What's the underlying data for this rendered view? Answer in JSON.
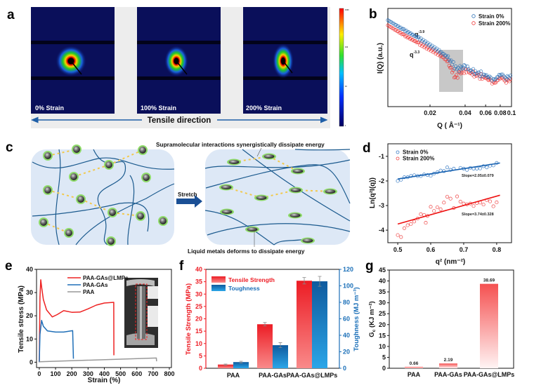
{
  "panels": {
    "a": {
      "label": "a",
      "images": [
        "0% Strain",
        "100% Strain",
        "200% Strain"
      ],
      "direction": "Tensile direction",
      "colorbar_ticks": [
        "1000",
        "100",
        "10",
        "1"
      ]
    },
    "b": {
      "label": "b",
      "annot1_base": "q",
      "annot1_exp": "-3.9",
      "annot2_base": "q",
      "annot2_exp": "-3.3"
    },
    "c": {
      "label": "c",
      "stretch": "Stretch",
      "top_note": "Supramolecular interactions synergistically dissipate energy",
      "bottom_note": "Liquid metals deforms to dissipate energy"
    },
    "d": {
      "label": "d",
      "slope_blue": "Slope=2.05±0.079",
      "slope_red": "Slope=3.74±0.328"
    },
    "e": {
      "label": "e"
    },
    "f": {
      "label": "f"
    },
    "g": {
      "label": "g"
    }
  },
  "colors": {
    "blue": "#1f5fa8",
    "red": "#ee2222",
    "gray": "#9a9a9a",
    "navy": "#0a0f5a"
  },
  "chart_data": [
    {
      "id": "b",
      "type": "scatter",
      "xlabel": "Q ( Å⁻¹)",
      "ylabel": "I(Q) (a.u.)",
      "xscale": "log",
      "xlim": [
        0.0087,
        0.1
      ],
      "ylim": [
        0,
        11
      ],
      "xticks": [
        0.02,
        0.04,
        0.06,
        0.08,
        0.1
      ],
      "xtick_labels": [
        "0.02",
        "0.04",
        "0.06",
        "0.08",
        "0.1"
      ],
      "legend_position": "top-right",
      "highlight_range": [
        0.026,
        0.04
      ],
      "series": [
        {
          "name": "Strain 0%",
          "color": "#2a6fb5",
          "points": [
            [
              0.0087,
              9.6
            ],
            [
              0.012,
              8.5
            ],
            [
              0.016,
              7.6
            ],
            [
              0.02,
              6.8
            ],
            [
              0.025,
              6.0
            ],
            [
              0.028,
              5.5
            ],
            [
              0.031,
              4.8
            ],
            [
              0.034,
              4.1
            ],
            [
              0.037,
              4.2
            ],
            [
              0.04,
              4.4
            ],
            [
              0.045,
              4.0
            ],
            [
              0.05,
              3.7
            ],
            [
              0.06,
              3.4
            ],
            [
              0.065,
              3.2
            ],
            [
              0.07,
              2.9
            ],
            [
              0.075,
              3.2
            ],
            [
              0.08,
              3.6
            ],
            [
              0.09,
              3.2
            ],
            [
              0.1,
              3.3
            ]
          ]
        },
        {
          "name": "Strain 200%",
          "color": "#ee3333",
          "points": [
            [
              0.0087,
              9.1
            ],
            [
              0.012,
              8.0
            ],
            [
              0.016,
              7.1
            ],
            [
              0.02,
              6.4
            ],
            [
              0.025,
              5.7
            ],
            [
              0.028,
              5.1
            ],
            [
              0.031,
              4.0
            ],
            [
              0.033,
              3.3
            ],
            [
              0.036,
              3.7
            ],
            [
              0.04,
              4.1
            ],
            [
              0.045,
              3.8
            ],
            [
              0.05,
              3.5
            ],
            [
              0.06,
              3.2
            ],
            [
              0.065,
              3.0
            ],
            [
              0.07,
              2.6
            ],
            [
              0.075,
              2.9
            ],
            [
              0.08,
              3.3
            ],
            [
              0.09,
              2.9
            ],
            [
              0.1,
              3.0
            ]
          ]
        }
      ]
    },
    {
      "id": "d",
      "type": "scatter",
      "xlabel": "q² (nm⁻²)",
      "ylabel": "Ln(q²I(q))",
      "xlim": [
        0.47,
        0.845
      ],
      "ylim": [
        -4.51,
        -0.49
      ],
      "xticks": [
        0.5,
        0.6,
        0.7,
        0.8
      ],
      "xtick_labels": [
        "0.5",
        "0.6",
        "0.7",
        "0.8"
      ],
      "yticks": [
        -1,
        -2,
        -3,
        -4
      ],
      "ytick_labels": [
        "-1",
        "-2",
        "-3",
        "-4"
      ],
      "legend_position": "top-left",
      "series": [
        {
          "name": "Strain 0%",
          "color": "#3a7cc4",
          "fit": [
            [
              0.5,
              -1.92
            ],
            [
              0.81,
              -1.27
            ]
          ],
          "points": [
            [
              0.5,
              -2.0
            ],
            [
              0.51,
              -1.95
            ],
            [
              0.52,
              -1.85
            ],
            [
              0.53,
              -1.85
            ],
            [
              0.54,
              -1.8
            ],
            [
              0.55,
              -1.77
            ],
            [
              0.56,
              -1.8
            ],
            [
              0.57,
              -1.8
            ],
            [
              0.58,
              -1.74
            ],
            [
              0.59,
              -1.76
            ],
            [
              0.6,
              -1.79
            ],
            [
              0.61,
              -1.7
            ],
            [
              0.62,
              -1.65
            ],
            [
              0.63,
              -1.58
            ],
            [
              0.64,
              -1.6
            ],
            [
              0.65,
              -1.45
            ],
            [
              0.66,
              -1.55
            ],
            [
              0.67,
              -1.5
            ],
            [
              0.69,
              -1.47
            ],
            [
              0.7,
              -1.5
            ],
            [
              0.71,
              -1.55
            ],
            [
              0.72,
              -1.47
            ],
            [
              0.73,
              -1.5
            ],
            [
              0.74,
              -1.5
            ],
            [
              0.75,
              -1.49
            ],
            [
              0.76,
              -1.4
            ],
            [
              0.77,
              -1.45
            ],
            [
              0.78,
              -1.38
            ],
            [
              0.79,
              -1.37
            ],
            [
              0.8,
              -1.27
            ]
          ]
        },
        {
          "name": "Strain 200%",
          "color": "#ee4444",
          "fit": [
            [
              0.5,
              -3.75
            ],
            [
              0.81,
              -2.58
            ]
          ],
          "points": [
            [
              0.5,
              -4.2
            ],
            [
              0.51,
              -4.28
            ],
            [
              0.52,
              -3.92
            ],
            [
              0.53,
              -3.8
            ],
            [
              0.54,
              -3.75
            ],
            [
              0.55,
              -3.65
            ],
            [
              0.56,
              -3.53
            ],
            [
              0.57,
              -3.35
            ],
            [
              0.58,
              -3.38
            ],
            [
              0.585,
              -3.7
            ],
            [
              0.59,
              -3.42
            ],
            [
              0.6,
              -3.05
            ],
            [
              0.61,
              -3.22
            ],
            [
              0.62,
              -3.07
            ],
            [
              0.63,
              -3.15
            ],
            [
              0.64,
              -2.88
            ],
            [
              0.65,
              -2.64
            ],
            [
              0.66,
              -2.72
            ],
            [
              0.67,
              -3.1
            ],
            [
              0.68,
              -2.63
            ],
            [
              0.69,
              -2.84
            ],
            [
              0.7,
              -2.92
            ],
            [
              0.71,
              -2.95
            ],
            [
              0.72,
              -2.92
            ],
            [
              0.73,
              -3.02
            ],
            [
              0.74,
              -2.9
            ],
            [
              0.75,
              -2.88
            ],
            [
              0.76,
              -2.96
            ],
            [
              0.77,
              -2.78
            ],
            [
              0.78,
              -2.83
            ],
            [
              0.79,
              -3.03
            ],
            [
              0.8,
              -2.87
            ]
          ]
        }
      ]
    },
    {
      "id": "e",
      "type": "line",
      "xlabel": "Strain (%)",
      "ylabel": "Tensile stress (MPa)",
      "xlim": [
        -17,
        813
      ],
      "ylim": [
        -2.3,
        40
      ],
      "xticks": [
        0,
        100,
        200,
        300,
        400,
        500,
        600,
        700,
        800
      ],
      "xtick_labels": [
        "0",
        "100",
        "200",
        "300",
        "400",
        "500",
        "600",
        "700",
        "800"
      ],
      "yticks": [
        0,
        10,
        20,
        30,
        40
      ],
      "ytick_labels": [
        "0",
        "10",
        "20",
        "30",
        "40"
      ],
      "legend_position": "top-center",
      "series": [
        {
          "name": "PAA-GAs@LMPs",
          "color": "#ee2222",
          "points": [
            [
              0,
              0
            ],
            [
              4,
              28
            ],
            [
              9,
              35.5
            ],
            [
              15,
              32
            ],
            [
              25,
              27
            ],
            [
              45,
              22.5
            ],
            [
              80,
              19.5
            ],
            [
              110,
              20.5
            ],
            [
              150,
              22.2
            ],
            [
              200,
              21.5
            ],
            [
              250,
              21.6
            ],
            [
              300,
              23
            ],
            [
              350,
              24.6
            ],
            [
              400,
              25.5
            ],
            [
              458,
              25.8
            ],
            [
              459,
              3
            ]
          ]
        },
        {
          "name": "PAA-GAs",
          "color": "#1f6fb8",
          "points": [
            [
              0,
              0
            ],
            [
              4,
              12
            ],
            [
              14,
              18
            ],
            [
              25,
              15.5
            ],
            [
              50,
              13.5
            ],
            [
              100,
              13
            ],
            [
              150,
              13
            ],
            [
              205,
              13.6
            ],
            [
              210,
              1.5
            ]
          ]
        },
        {
          "name": "PAA",
          "color": "#999999",
          "points": [
            [
              0,
              0.2
            ],
            [
              720,
              1.8
            ],
            [
              722,
              0.4
            ]
          ]
        }
      ]
    },
    {
      "id": "f",
      "type": "bar",
      "categories": [
        "PAA",
        "PAA-GAs",
        "PAA-GAs@LMPs"
      ],
      "ylabel": "Tensile Strength (MPa)",
      "ylabel_right": "Toughness (MJ m⁻³)",
      "ylim": [
        0,
        40
      ],
      "ylim_right": [
        0,
        120
      ],
      "yticks": [
        0,
        5,
        10,
        15,
        20,
        25,
        30,
        35,
        40
      ],
      "ytick_labels": [
        "0",
        "5",
        "10",
        "15",
        "20",
        "25",
        "30",
        "35",
        "40"
      ],
      "yticks_right": [
        0,
        20,
        40,
        60,
        80,
        100,
        120
      ],
      "ytick_labels_right": [
        "0",
        "20",
        "40",
        "60",
        "80",
        "100",
        "120"
      ],
      "legend_position": "top-left",
      "series": [
        {
          "name": "Tensile Strength",
          "axis": "left",
          "color": "#ee1c24",
          "values": [
            1.5,
            17.8,
            35.4
          ],
          "errors": [
            0.2,
            0.7,
            1.3
          ]
        },
        {
          "name": "Toughness",
          "axis": "right",
          "color": "#1a6fb8",
          "values": [
            7.5,
            28,
            105.5
          ],
          "errors": [
            1,
            3,
            6
          ]
        }
      ]
    },
    {
      "id": "g",
      "type": "bar",
      "categories": [
        "PAA",
        "PAA-GAs",
        "PAA-GAs@LMPs"
      ],
      "ylabel_main": "G",
      "ylabel_sub": "c",
      "ylabel_unit": " (KJ m⁻²)",
      "ylim": [
        0,
        45
      ],
      "yticks": [
        0,
        5,
        10,
        15,
        20,
        25,
        30,
        35,
        40,
        45
      ],
      "ytick_labels": [
        "0",
        "5",
        "10",
        "15",
        "20",
        "25",
        "30",
        "35",
        "40",
        "45"
      ],
      "values": [
        0.66,
        2.19,
        38.69
      ],
      "value_labels": [
        "0.66",
        "2.19",
        "38.69"
      ]
    }
  ]
}
